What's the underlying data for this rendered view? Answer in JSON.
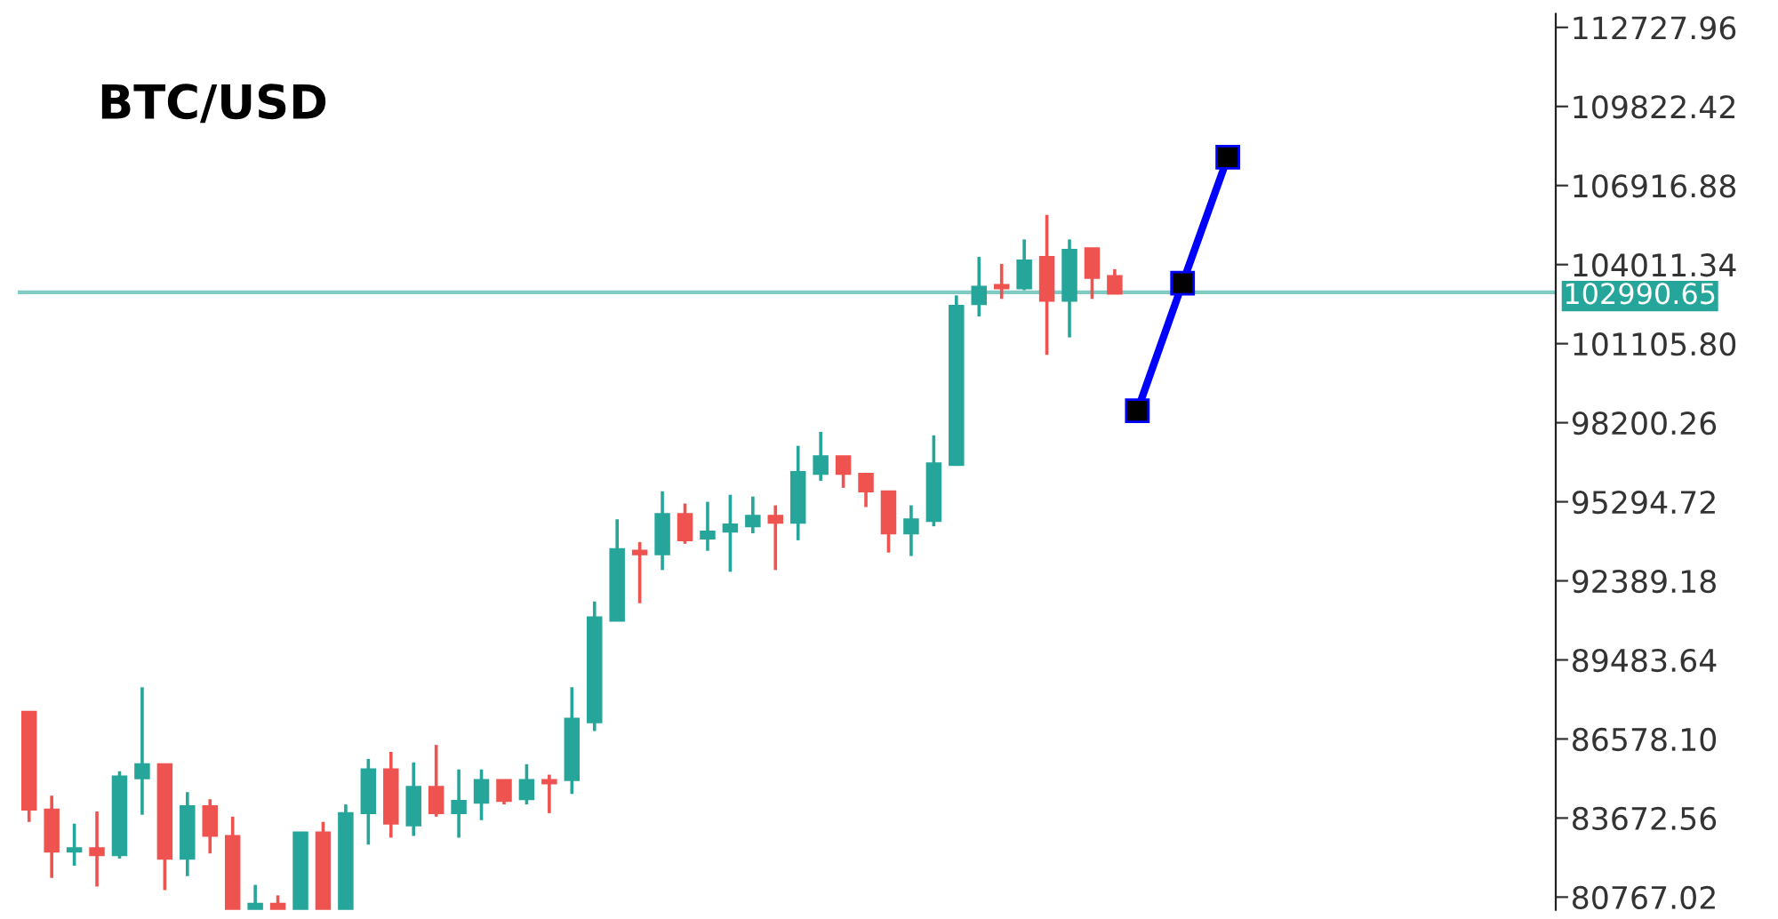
{
  "chart_data": {
    "type": "candlestick",
    "title": "BTC/USD",
    "ylim": [
      80300,
      113228
    ],
    "yticks": [
      80767.02,
      83672.56,
      {
        "value": 86578.1,
        "label": "86578.10"
      },
      89483.64,
      92389.18,
      95294.72,
      98200.26,
      {
        "value": 101105.8,
        "label": "101105.80"
      },
      104011.34,
      106916.88,
      109822.42,
      112727.96
    ],
    "tick_labels": "y",
    "grid": false,
    "legend": false,
    "ref_lines": [
      {
        "axis": "y",
        "value": 102990.65,
        "label": "102990.65",
        "color": "#80cbc4"
      }
    ],
    "categories": [
      null,
      null,
      null,
      null,
      null,
      null,
      null,
      null,
      null,
      null,
      null,
      null,
      null,
      null,
      null,
      null,
      null,
      null,
      null,
      null,
      null,
      null,
      null,
      null,
      null,
      null,
      null,
      null,
      null,
      null,
      null,
      null,
      null,
      null,
      null,
      null,
      null,
      null,
      null,
      null,
      null,
      null,
      null,
      null,
      null,
      null,
      null,
      null,
      null,
      null,
      null,
      null,
      null,
      null,
      null,
      null,
      null,
      null,
      null,
      null,
      null,
      null,
      null,
      null,
      null,
      null,
      null,
      null
    ],
    "ohlc": [
      [
        87580,
        87580,
        83531,
        83981
      ],
      [
        83981,
        84495,
        81474,
        82438
      ],
      [
        82438,
        83466,
        81924,
        82566
      ],
      [
        82566,
        83916,
        81152,
        82309
      ],
      [
        82309,
        85395,
        82181,
        85202
      ],
      [
        85138,
        88480,
        83788,
        85652
      ],
      [
        85652,
        85652,
        81024,
        82181
      ],
      [
        82181,
        84623,
        81538,
        84109
      ],
      [
        84109,
        84366,
        82374,
        83016
      ],
      [
        83016,
        83723,
        80320,
        80320
      ],
      [
        80320,
        81217,
        80320,
        80520
      ],
      [
        80520,
        80831,
        80320,
        80320
      ],
      [
        80320,
        83145,
        80320,
        83145
      ],
      [
        83145,
        83531,
        80320,
        80320
      ],
      [
        80320,
        84173,
        80320,
        83852
      ],
      [
        83852,
        85845,
        82695,
        85459
      ],
      [
        85459,
        86102,
        82952,
        83466
      ],
      [
        83402,
        85716,
        83016,
        84816
      ],
      [
        84816,
        86359,
        83723,
        83852
      ],
      [
        83852,
        85459,
        82952,
        84302
      ],
      [
        84238,
        85459,
        83595,
        85073
      ],
      [
        85073,
        85073,
        84173,
        84302
      ],
      [
        84366,
        85652,
        84173,
        85073
      ],
      [
        85073,
        85266,
        83852,
        84945
      ],
      [
        85073,
        88480,
        84559,
        87323
      ],
      [
        87195,
        91630,
        86873,
        91051
      ],
      [
        90923,
        94651,
        90923,
        93558
      ],
      [
        93494,
        93815,
        91566,
        93365
      ],
      [
        93365,
        95680,
        92787,
        94844
      ],
      [
        94844,
        95230,
        93751,
        93880
      ],
      [
        93944,
        95294,
        93494,
        94201
      ],
      [
        94201,
        95551,
        92723,
        94458
      ],
      [
        94394,
        95487,
        94137,
        94780
      ],
      [
        94780,
        95165,
        92787,
        94523
      ],
      [
        94523,
        97351,
        93880,
        96387
      ],
      [
        96322,
        97865,
        96065,
        96965
      ],
      [
        96965,
        96965,
        95808,
        96322
      ],
      [
        96322,
        96322,
        95101,
        95680
      ],
      [
        95680,
        95680,
        93430,
        94137
      ],
      [
        94137,
        95165,
        93301,
        94651
      ],
      [
        94587,
        97737,
        94394,
        96708
      ],
      [
        96644,
        102879,
        96644,
        102493
      ],
      [
        102558,
        104293,
        102108,
        103200
      ],
      [
        103265,
        104036,
        102750,
        103136
      ],
      [
        103136,
        104936,
        103072,
        104165
      ],
      [
        104293,
        105836,
        100693,
        102686
      ],
      [
        102686,
        104936,
        101336,
        104550
      ],
      [
        104614,
        104614,
        102750,
        103522
      ],
      [
        103586,
        103843,
        102943,
        102943
      ],
      null,
      null,
      null,
      null,
      null,
      null,
      null,
      null,
      null,
      null,
      null,
      null,
      null,
      null,
      null,
      null,
      null,
      null,
      null
    ],
    "colors": [
      "#ef5350",
      "#ef5350",
      "#26a69a",
      "#ef5350",
      "#26a69a",
      "#26a69a",
      "#ef5350",
      "#26a69a",
      "#ef5350",
      "#ef5350",
      "#26a69a",
      "#ef5350",
      "#26a69a",
      "#ef5350",
      "#26a69a",
      "#26a69a",
      "#ef5350",
      "#26a69a",
      "#ef5350",
      "#26a69a",
      "#26a69a",
      "#ef5350",
      "#26a69a",
      "#ef5350",
      "#26a69a",
      "#26a69a",
      "#26a69a",
      "#ef5350",
      "#26a69a",
      "#ef5350",
      "#26a69a",
      "#26a69a",
      "#26a69a",
      "#ef5350",
      "#26a69a",
      "#26a69a",
      "#ef5350",
      "#ef5350",
      "#ef5350",
      "#26a69a",
      "#26a69a",
      "#26a69a",
      "#26a69a",
      "#ef5350",
      "#26a69a",
      "#ef5350",
      "#26a69a",
      "#ef5350",
      "#ef5350",
      null,
      null,
      null,
      null,
      null,
      null,
      null,
      null,
      null,
      null,
      null,
      null,
      null,
      null,
      null,
      null,
      null,
      null,
      null
    ],
    "series": [
      {
        "type": "line",
        "values": [
          null,
          null,
          null,
          null,
          null,
          null,
          null,
          null,
          null,
          null,
          null,
          null,
          null,
          null,
          null,
          null,
          null,
          null,
          null,
          null,
          null,
          null,
          null,
          null,
          null,
          null,
          null,
          null,
          null,
          null,
          null,
          null,
          null,
          null,
          null,
          null,
          null,
          null,
          null,
          null,
          null,
          null,
          null,
          null,
          null,
          null,
          null,
          null,
          null,
          98640,
          null,
          103330,
          null,
          107960,
          null,
          null,
          null,
          null,
          null,
          null,
          null,
          null,
          null,
          null,
          null,
          null,
          null,
          null
        ],
        "color": "#0000ff",
        "marker": "square",
        "line_style": "solid"
      }
    ]
  }
}
